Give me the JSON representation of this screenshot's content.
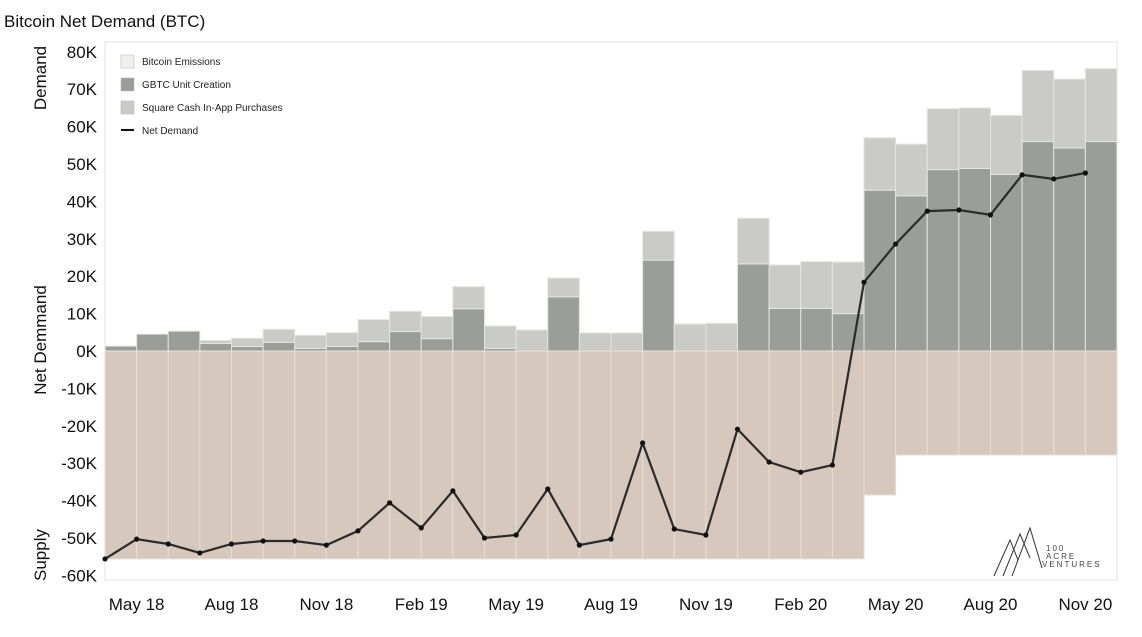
{
  "chart_data": {
    "type": "bar",
    "title": "Bitcoin Net Demand (BTC)",
    "ylabel_segments": [
      "Demand",
      "Net Demmand",
      "Supply"
    ],
    "ylim": [
      -60000,
      80000
    ],
    "yticks": [
      80000,
      70000,
      60000,
      50000,
      40000,
      30000,
      20000,
      10000,
      0,
      -10000,
      -20000,
      -30000,
      -40000,
      -50000,
      -60000
    ],
    "ytick_labels": [
      "80K",
      "70K",
      "60K",
      "50K",
      "40K",
      "30K",
      "20K",
      "10K",
      "0K",
      "-10K",
      "-20K",
      "-30K",
      "-40K",
      "-50K",
      "-60K"
    ],
    "categories": [
      "Apr 18",
      "May 18",
      "Jun 18",
      "Jul 18",
      "Aug 18",
      "Sep 18",
      "Oct 18",
      "Nov 18",
      "Dec 18",
      "Jan 19",
      "Feb 19",
      "Mar 19",
      "Apr 19",
      "May 19",
      "Jun 19",
      "Jul 19",
      "Aug 19",
      "Sep 19",
      "Oct 19",
      "Nov 19",
      "Dec 19",
      "Jan 20",
      "Feb 20",
      "Mar 20",
      "Apr 20",
      "May 20",
      "Jun 20",
      "Jul 20",
      "Aug 20",
      "Sep 20",
      "Oct 20",
      "Nov 20"
    ],
    "xtick_labels": [
      {
        "label": "May 18",
        "index": 1
      },
      {
        "label": "Aug 18",
        "index": 4
      },
      {
        "label": "Nov 18",
        "index": 7
      },
      {
        "label": "Feb 19",
        "index": 10
      },
      {
        "label": "May 19",
        "index": 13
      },
      {
        "label": "Aug 19",
        "index": 16
      },
      {
        "label": "Nov 19",
        "index": 19
      },
      {
        "label": "Feb 20",
        "index": 22
      },
      {
        "label": "May 20",
        "index": 25
      },
      {
        "label": "Aug 20",
        "index": 28
      },
      {
        "label": "Nov 20",
        "index": 31
      }
    ],
    "series": [
      {
        "name": "Bitcoin Emissions",
        "color": "#d6c8bd",
        "legend_color": "#f0efec",
        "values": [
          -55600,
          -55600,
          -55600,
          -55600,
          -55600,
          -55600,
          -55600,
          -55600,
          -55600,
          -55600,
          -55600,
          -55600,
          -55600,
          -55600,
          -55600,
          -55600,
          -55600,
          -55600,
          -55600,
          -55600,
          -55600,
          -55600,
          -55600,
          -55600,
          -38500,
          -27800,
          -27800,
          -27800,
          -27800,
          -27800,
          -27800,
          -27800
        ]
      },
      {
        "name": "GBTC Unit Creation",
        "color": "#9a9e98",
        "values": [
          1300,
          4500,
          5300,
          2000,
          1200,
          2300,
          700,
          1200,
          2500,
          5200,
          3300,
          11300,
          700,
          0,
          14500,
          0,
          0,
          24300,
          0,
          0,
          23300,
          11400,
          11400,
          10000,
          43000,
          41500,
          48500,
          48800,
          47200,
          56000,
          54300,
          56000
        ]
      },
      {
        "name": "Square Cash In-App Purchases",
        "color": "#cacbc6",
        "values": [
          0,
          0,
          0,
          800,
          2200,
          3500,
          3500,
          3700,
          5900,
          5400,
          5900,
          5900,
          6000,
          5600,
          5000,
          4800,
          4800,
          7700,
          7200,
          7400,
          12200,
          11600,
          12500,
          13800,
          14000,
          13800,
          16300,
          16200,
          15800,
          19000,
          18400,
          19500
        ]
      },
      {
        "name": "Net Demand",
        "type": "line",
        "color": "#2b2b2b",
        "values": [
          -55600,
          -50300,
          -51600,
          -54000,
          -51600,
          -50800,
          -50800,
          -51900,
          -48100,
          -40600,
          -47300,
          -37400,
          -50000,
          -49200,
          -36900,
          -51900,
          -50300,
          -24600,
          -47600,
          -49200,
          -20900,
          -29700,
          -32400,
          -30500,
          18400,
          28600,
          37400,
          37700,
          36400,
          47100,
          46000,
          47600
        ]
      }
    ],
    "legend_placement": "top-left",
    "grid": false,
    "logo_text": "100 ACRE VENTURES"
  }
}
